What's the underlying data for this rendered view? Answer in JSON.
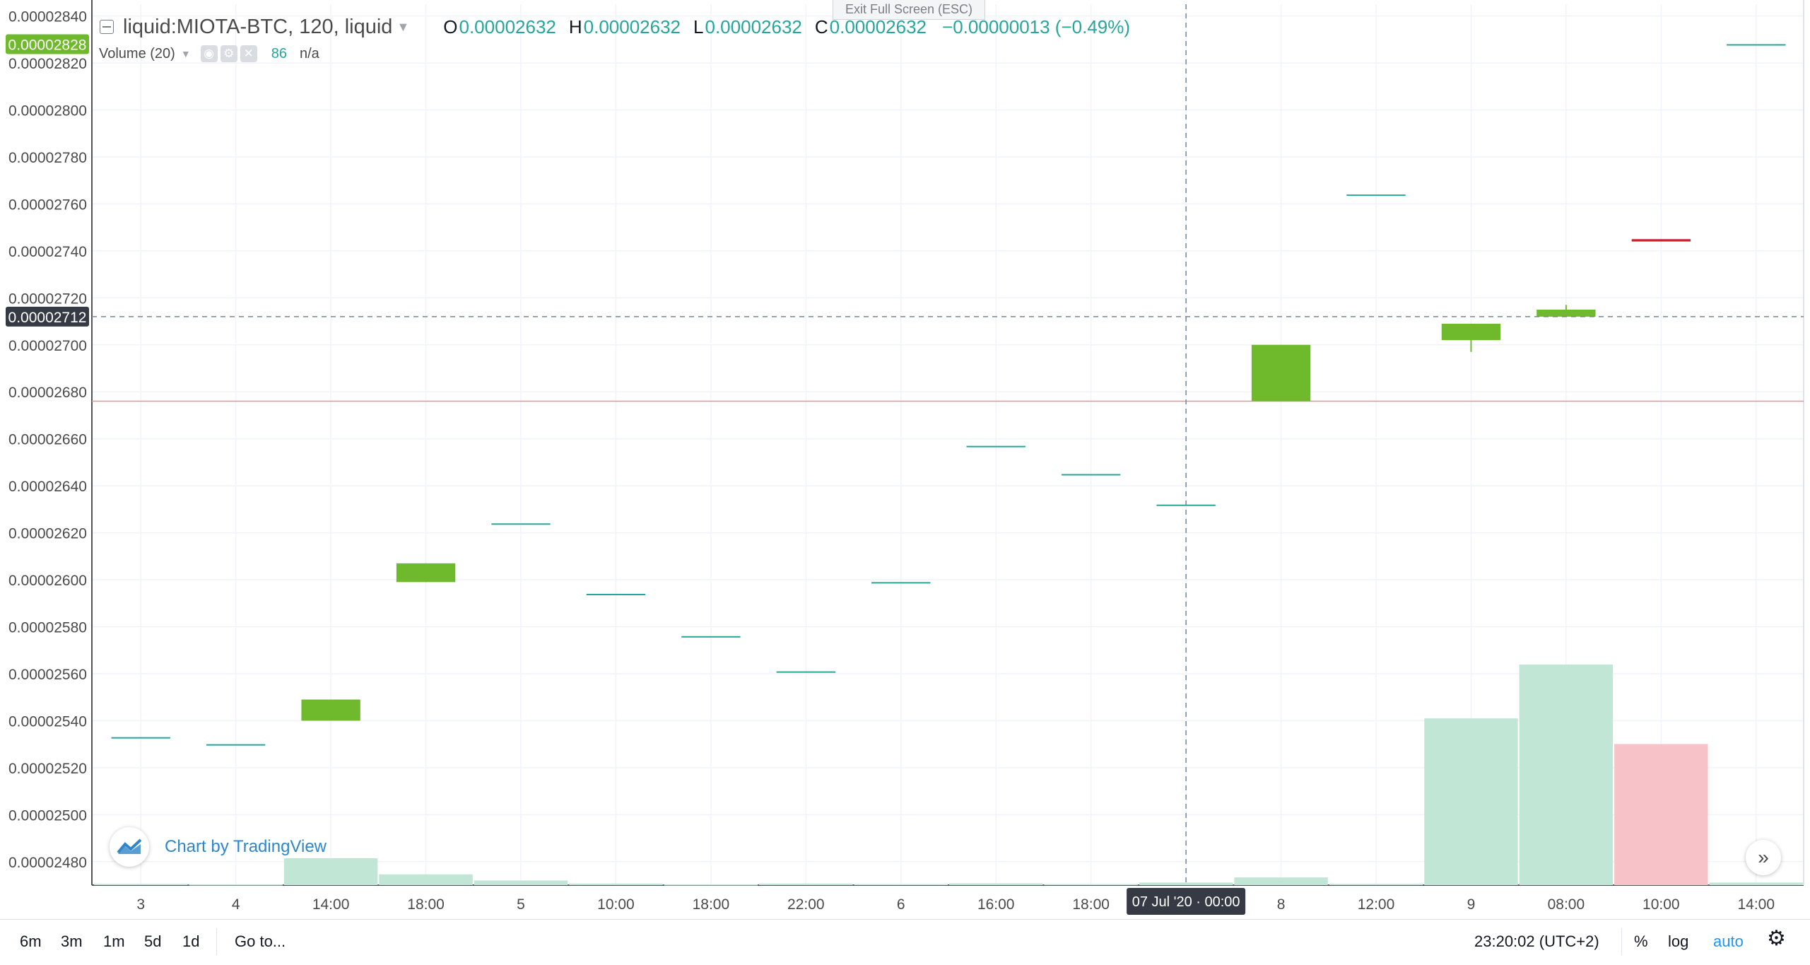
{
  "header": {
    "symbol": "liquid:MIOTA-BTC, 120, liquid",
    "ohlc": [
      {
        "k": "O",
        "v": "0.00002632"
      },
      {
        "k": "H",
        "v": "0.00002632"
      },
      {
        "k": "L",
        "v": "0.00002632"
      },
      {
        "k": "C",
        "v": "0.00002632"
      }
    ],
    "change": "−0.00000013 (−0.49%)",
    "volume_label": "Volume (20)",
    "volume_value": "86",
    "volume_ma": "n/a"
  },
  "exit_fullscreen": "Exit Full Screen (ESC)",
  "watermark": "Chart by TradingView",
  "price_labels": {
    "last": "0.00002828",
    "crosshair": "0.00002712",
    "colors": {
      "last": "#6fba2c",
      "crosshair": "#363a45",
      "up": "#6fba2c",
      "down": "#cc1f2c",
      "flat": "#26a69a",
      "vol_up": "#c2e6d6",
      "vol_down": "#f7c3c8"
    }
  },
  "crosshair_time": "07 Jul '20 · 00:00",
  "chart_data": {
    "type": "candlestick",
    "y_range": [
      2.47e-05,
      2.845e-05
    ],
    "y_ticks": [
      "0.00002480",
      "0.00002500",
      "0.00002520",
      "0.00002540",
      "0.00002560",
      "0.00002580",
      "0.00002600",
      "0.00002620",
      "0.00002640",
      "0.00002660",
      "0.00002680",
      "0.00002700",
      "0.00002720",
      "0.00002740",
      "0.00002760",
      "0.00002780",
      "0.00002800",
      "0.00002820",
      "0.00002840"
    ],
    "x_labels": [
      "3",
      "4",
      "14:00",
      "18:00",
      "5",
      "10:00",
      "18:00",
      "22:00",
      "6",
      "16:00",
      "18:00",
      "7",
      "8",
      "12:00",
      "9",
      "08:00",
      "10:00",
      "14:00"
    ],
    "candles": [
      {
        "o": 2.533e-05,
        "h": 2.533e-05,
        "l": 2.533e-05,
        "c": 2.533e-05,
        "vol": 0.5
      },
      {
        "o": 2.53e-05,
        "h": 2.53e-05,
        "l": 2.53e-05,
        "c": 2.53e-05,
        "vol": 0.3
      },
      {
        "o": 2.54e-05,
        "h": 2.549e-05,
        "l": 2.54e-05,
        "c": 2.549e-05,
        "vol": 10.5
      },
      {
        "o": 2.599e-05,
        "h": 2.607e-05,
        "l": 2.599e-05,
        "c": 2.607e-05,
        "vol": 4.2
      },
      {
        "o": 2.624e-05,
        "h": 2.624e-05,
        "l": 2.624e-05,
        "c": 2.624e-05,
        "vol": 1.8
      },
      {
        "o": 2.594e-05,
        "h": 2.594e-05,
        "l": 2.594e-05,
        "c": 2.594e-05,
        "vol": 0.6
      },
      {
        "o": 2.576e-05,
        "h": 2.576e-05,
        "l": 2.576e-05,
        "c": 2.576e-05,
        "vol": 0.3
      },
      {
        "o": 2.561e-05,
        "h": 2.561e-05,
        "l": 2.561e-05,
        "c": 2.561e-05,
        "vol": 0.6
      },
      {
        "o": 2.599e-05,
        "h": 2.599e-05,
        "l": 2.599e-05,
        "c": 2.599e-05,
        "vol": 0.4
      },
      {
        "o": 2.657e-05,
        "h": 2.657e-05,
        "l": 2.657e-05,
        "c": 2.657e-05,
        "vol": 0.7
      },
      {
        "o": 2.645e-05,
        "h": 2.645e-05,
        "l": 2.645e-05,
        "c": 2.645e-05,
        "vol": 0.4
      },
      {
        "o": 2.632e-05,
        "h": 2.632e-05,
        "l": 2.632e-05,
        "c": 2.632e-05,
        "vol": 1.0
      },
      {
        "o": 2.676e-05,
        "h": 2.7e-05,
        "l": 2.676e-05,
        "c": 2.7e-05,
        "vol": 3.0
      },
      {
        "o": 2.764e-05,
        "h": 2.764e-05,
        "l": 2.764e-05,
        "c": 2.764e-05,
        "vol": 0.5
      },
      {
        "o": 2.702e-05,
        "h": 2.709e-05,
        "l": 2.697e-05,
        "c": 2.709e-05,
        "vol": 65
      },
      {
        "o": 2.712e-05,
        "h": 2.717e-05,
        "l": 2.712e-05,
        "c": 2.715e-05,
        "vol": 86
      },
      {
        "o": 2.745e-05,
        "h": 2.745e-05,
        "l": 2.745e-05,
        "c": 2.744e-05,
        "vol": 55
      },
      {
        "o": 2.828e-05,
        "h": 2.828e-05,
        "l": 2.828e-05,
        "c": 2.828e-05,
        "vol": 1.0
      }
    ]
  },
  "toolbar": {
    "ranges": [
      "6m",
      "3m",
      "1m",
      "5d",
      "1d"
    ],
    "goto": "Go to...",
    "time": "23:20:02 (UTC+2)",
    "percent": "%",
    "log": "log",
    "auto": "auto"
  }
}
